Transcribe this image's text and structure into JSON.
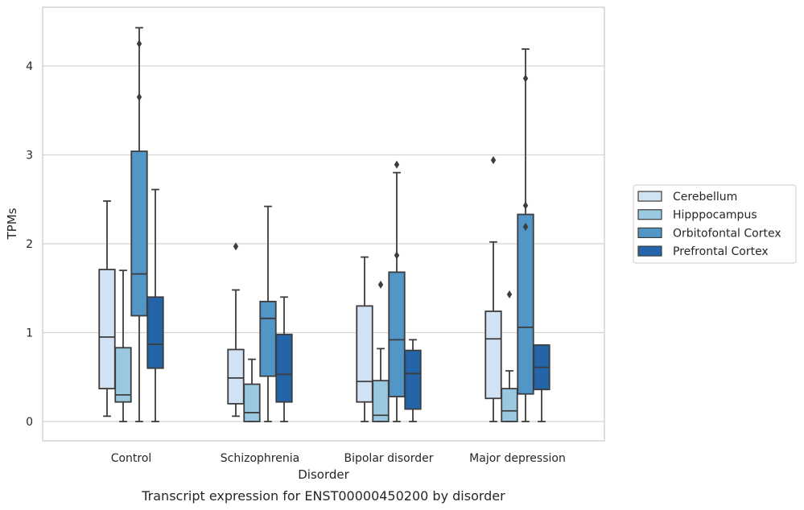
{
  "caption": "Transcript expression for ENST00000450200 by disorder",
  "chart_data": {
    "type": "boxplot",
    "xlabel": "Disorder",
    "ylabel": "TPMs",
    "ylim": [
      -0.22,
      4.65
    ],
    "yticks": [
      0,
      1,
      2,
      3,
      4
    ],
    "grid": "horizontal",
    "legend_position": "right",
    "categories": [
      "Control",
      "Schizophrenia",
      "Bipolar disorder",
      "Major depression"
    ],
    "series": [
      {
        "name": "Cerebellum",
        "color": "#d1e2f2",
        "boxes": [
          {
            "whislo": 0.06,
            "q1": 0.37,
            "med": 0.95,
            "q3": 1.71,
            "whishi": 2.48,
            "fliers": []
          },
          {
            "whislo": 0.06,
            "q1": 0.2,
            "med": 0.49,
            "q3": 0.81,
            "whishi": 1.48,
            "fliers": [
              1.97
            ]
          },
          {
            "whislo": 0.0,
            "q1": 0.22,
            "med": 0.45,
            "q3": 1.3,
            "whishi": 1.85,
            "fliers": []
          },
          {
            "whislo": 0.0,
            "q1": 0.26,
            "med": 0.93,
            "q3": 1.24,
            "whishi": 2.02,
            "fliers": [
              2.94
            ]
          }
        ]
      },
      {
        "name": "Hipppocampus",
        "color": "#9ac8e0",
        "boxes": [
          {
            "whislo": 0.0,
            "q1": 0.22,
            "med": 0.3,
            "q3": 0.83,
            "whishi": 1.7,
            "fliers": []
          },
          {
            "whislo": 0.0,
            "q1": 0.0,
            "med": 0.1,
            "q3": 0.42,
            "whishi": 0.7,
            "fliers": []
          },
          {
            "whislo": 0.0,
            "q1": 0.0,
            "med": 0.07,
            "q3": 0.46,
            "whishi": 0.82,
            "fliers": [
              1.54
            ]
          },
          {
            "whislo": 0.0,
            "q1": 0.0,
            "med": 0.12,
            "q3": 0.37,
            "whishi": 0.57,
            "fliers": [
              1.43
            ]
          }
        ]
      },
      {
        "name": "Orbitofontal Cortex",
        "color": "#5296c7",
        "boxes": [
          {
            "whislo": 0.0,
            "q1": 1.19,
            "med": 1.66,
            "q3": 3.04,
            "whishi": 4.43,
            "fliers": [
              4.25,
              3.65
            ]
          },
          {
            "whislo": 0.0,
            "q1": 0.51,
            "med": 1.16,
            "q3": 1.35,
            "whishi": 2.42,
            "fliers": []
          },
          {
            "whislo": 0.0,
            "q1": 0.28,
            "med": 0.92,
            "q3": 1.68,
            "whishi": 2.8,
            "fliers": [
              2.89,
              1.87
            ]
          },
          {
            "whislo": 0.0,
            "q1": 0.31,
            "med": 1.06,
            "q3": 2.33,
            "whishi": 4.19,
            "fliers": [
              3.86,
              2.43,
              2.19
            ]
          }
        ]
      },
      {
        "name": "Prefrontal Cortex",
        "color": "#2464a8",
        "boxes": [
          {
            "whislo": 0.0,
            "q1": 0.6,
            "med": 0.87,
            "q3": 1.4,
            "whishi": 2.61,
            "fliers": []
          },
          {
            "whislo": 0.0,
            "q1": 0.22,
            "med": 0.53,
            "q3": 0.98,
            "whishi": 1.4,
            "fliers": []
          },
          {
            "whislo": 0.0,
            "q1": 0.14,
            "med": 0.54,
            "q3": 0.8,
            "whishi": 0.92,
            "fliers": []
          },
          {
            "whislo": 0.0,
            "q1": 0.36,
            "med": 0.61,
            "q3": 0.86,
            "whishi": 0.86,
            "fliers": []
          }
        ]
      }
    ]
  }
}
